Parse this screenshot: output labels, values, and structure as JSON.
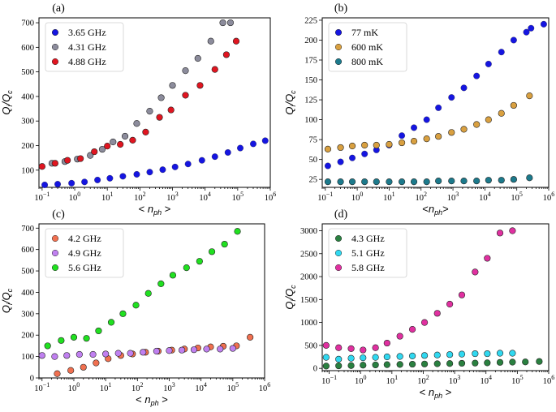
{
  "chart_data": [
    {
      "panel": "(a)",
      "type": "scatter",
      "xscale": "log",
      "xlim": [
        0.08,
        1000000
      ],
      "ylim": [
        30,
        720
      ],
      "xticks": [
        0.1,
        1,
        10,
        100,
        1000,
        10000,
        100000,
        1000000
      ],
      "yticks": [
        100,
        200,
        300,
        400,
        500,
        600,
        700
      ],
      "xlabel": "< n_ph >",
      "ylabel": "Qi/Qc",
      "legend_loc": "top-left",
      "series": [
        {
          "name": "3.65 GHz",
          "color": "#1515e0",
          "x": [
            0.12,
            0.3,
            0.8,
            2,
            5,
            12,
            30,
            80,
            200,
            500,
            1200,
            3000,
            8000,
            20000,
            50000,
            120000,
            300000,
            700000
          ],
          "y": [
            40,
            43,
            47,
            52,
            60,
            67,
            75,
            83,
            92,
            102,
            113,
            125,
            140,
            155,
            172,
            190,
            207,
            220
          ]
        },
        {
          "name": "4.31 GHz",
          "color": "#8c8c9c",
          "x": [
            0.2,
            0.5,
            1.2,
            3,
            7,
            15,
            35,
            80,
            200,
            450,
            1000,
            2500,
            6000,
            15000,
            35000,
            60000
          ],
          "y": [
            128,
            135,
            145,
            160,
            185,
            215,
            238,
            290,
            340,
            395,
            445,
            505,
            555,
            625,
            700,
            700
          ]
        },
        {
          "name": "4.88 GHz",
          "color": "#e01520",
          "x": [
            0.1,
            0.25,
            0.6,
            1.5,
            4,
            10,
            25,
            60,
            150,
            400,
            900,
            2500,
            7000,
            20000,
            45000,
            90000
          ],
          "y": [
            115,
            128,
            140,
            147,
            175,
            198,
            205,
            222,
            255,
            315,
            345,
            405,
            445,
            510,
            570,
            625
          ]
        }
      ]
    },
    {
      "panel": "(b)",
      "type": "scatter",
      "xscale": "log",
      "xlim": [
        0.08,
        1000000
      ],
      "ylim": [
        15,
        228
      ],
      "xticks": [
        0.1,
        1,
        10,
        100,
        1000,
        10000,
        100000,
        1000000
      ],
      "yticks": [
        25,
        50,
        75,
        100,
        125,
        150,
        175,
        200,
        225
      ],
      "xlabel": "<n_ph>",
      "ylabel": "Qi/Qc",
      "legend_loc": "top-left",
      "series": [
        {
          "name": "77 mK",
          "color": "#1515e0",
          "x": [
            0.12,
            0.3,
            0.7,
            1.7,
            4,
            10,
            25,
            60,
            150,
            350,
            900,
            2200,
            5500,
            13000,
            33000,
            80000,
            200000,
            280000,
            700000
          ],
          "y": [
            42,
            47,
            52,
            57,
            62,
            68,
            80,
            90,
            100,
            115,
            128,
            140,
            155,
            170,
            185,
            200,
            210,
            215,
            220
          ]
        },
        {
          "name": "600 mK",
          "color": "#d9a040",
          "x": [
            0.12,
            0.3,
            0.7,
            1.7,
            4,
            10,
            25,
            60,
            150,
            350,
            900,
            2200,
            5500,
            13000,
            33000,
            80000,
            250000
          ],
          "y": [
            63,
            65,
            67,
            68,
            68,
            69,
            71,
            73,
            76,
            79,
            84,
            88,
            94,
            100,
            108,
            118,
            130
          ]
        },
        {
          "name": "800 mK",
          "color": "#1c7a8c",
          "x": [
            0.12,
            0.3,
            0.7,
            1.7,
            4,
            10,
            25,
            60,
            150,
            350,
            900,
            2200,
            5500,
            13000,
            33000,
            80000,
            250000
          ],
          "y": [
            22,
            22,
            22,
            22,
            22,
            22,
            22,
            22,
            22,
            23,
            23,
            23,
            23,
            24,
            24,
            25,
            27
          ]
        }
      ]
    },
    {
      "panel": "(c)",
      "type": "scatter",
      "xscale": "log",
      "xlim": [
        0.08,
        1000000
      ],
      "ylim": [
        0,
        720
      ],
      "xticks": [
        0.1,
        1,
        10,
        100,
        1000,
        10000,
        100000,
        1000000
      ],
      "yticks": [
        0,
        100,
        200,
        300,
        400,
        500,
        600,
        700
      ],
      "xlabel": "< n_ph >",
      "ylabel": "Qi/Qc",
      "legend_loc": "top-left",
      "series": [
        {
          "name": "4.2 GHz",
          "color": "#f07050",
          "x": [
            0.3,
            0.8,
            2,
            5,
            12,
            30,
            70,
            180,
            450,
            1200,
            3000,
            8000,
            20000,
            50000,
            130000,
            350000
          ],
          "y": [
            20,
            35,
            50,
            70,
            90,
            105,
            112,
            120,
            125,
            130,
            135,
            140,
            145,
            148,
            150,
            190
          ]
        },
        {
          "name": "4.9 GHz",
          "color": "#c080f0",
          "x": [
            0.1,
            0.25,
            0.6,
            1.5,
            4,
            10,
            25,
            60,
            150,
            400,
            1000,
            2500,
            6000,
            15000,
            40000,
            100000
          ],
          "y": [
            105,
            100,
            105,
            110,
            110,
            112,
            115,
            115,
            120,
            125,
            128,
            130,
            132,
            135,
            135,
            138
          ]
        },
        {
          "name": "5.6 GHz",
          "color": "#20e020",
          "x": [
            0.15,
            0.4,
            1,
            2.5,
            6,
            15,
            35,
            90,
            220,
            550,
            1300,
            3500,
            9000,
            22000,
            55000,
            140000
          ],
          "y": [
            150,
            175,
            190,
            185,
            220,
            260,
            300,
            340,
            395,
            440,
            480,
            515,
            545,
            590,
            625,
            685
          ]
        }
      ]
    },
    {
      "panel": "(d)",
      "type": "scatter",
      "xscale": "log",
      "xlim": [
        0.06,
        1000000
      ],
      "ylim": [
        -50,
        3150
      ],
      "xticks": [
        0.1,
        1,
        10,
        100,
        1000,
        10000,
        100000,
        1000000
      ],
      "yticks": [
        0,
        500,
        1000,
        1500,
        2000,
        2500,
        3000
      ],
      "xlabel": "< n_ph >",
      "ylabel": "Qi/Qc",
      "legend_loc": "top-left",
      "series": [
        {
          "name": "4.3 GHz",
          "color": "#2a8040",
          "x": [
            0.08,
            0.2,
            0.5,
            1.2,
            3,
            7,
            18,
            45,
            110,
            280,
            700,
            1700,
            4500,
            11000,
            28000,
            70000,
            180000,
            500000
          ],
          "y": [
            50,
            55,
            60,
            70,
            75,
            80,
            85,
            90,
            95,
            100,
            105,
            110,
            115,
            120,
            130,
            135,
            140,
            150
          ]
        },
        {
          "name": "5.1 GHz",
          "color": "#30d8f0",
          "x": [
            0.08,
            0.2,
            0.5,
            1.2,
            3,
            7,
            18,
            45,
            110,
            280,
            700,
            1700,
            4500,
            11000,
            28000,
            70000
          ],
          "y": [
            240,
            200,
            220,
            230,
            240,
            250,
            260,
            270,
            280,
            290,
            300,
            310,
            320,
            320,
            330,
            330
          ]
        },
        {
          "name": "5.8 GHz",
          "color": "#e030a0",
          "x": [
            0.08,
            0.2,
            0.5,
            1.2,
            3,
            7,
            18,
            45,
            110,
            280,
            700,
            1700,
            4500,
            11000,
            28000,
            70000
          ],
          "y": [
            500,
            450,
            430,
            400,
            450,
            550,
            700,
            850,
            1000,
            1200,
            1400,
            1600,
            2100,
            2400,
            2950,
            3000
          ]
        }
      ]
    }
  ]
}
